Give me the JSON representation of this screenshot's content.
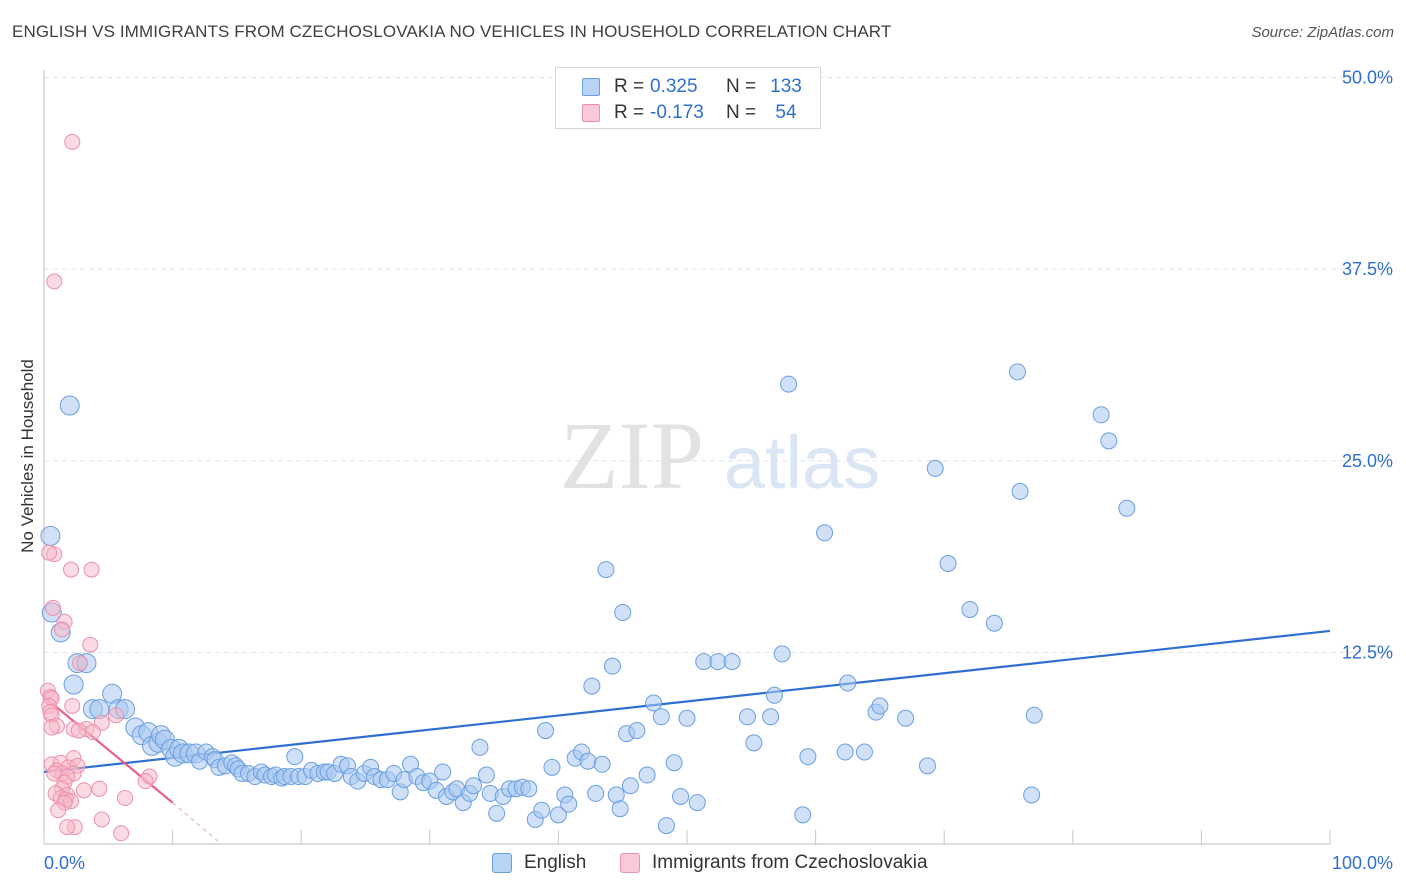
{
  "title": "ENGLISH VS IMMIGRANTS FROM CZECHOSLOVAKIA NO VEHICLES IN HOUSEHOLD CORRELATION CHART",
  "source": "Source: ZipAtlas.com",
  "watermark": {
    "zip": "ZIP",
    "atlas": "atlas"
  },
  "colors": {
    "english_fill": "#a9c8f0",
    "english_stroke": "#6a9fe0",
    "english_line": "#2f6fd1",
    "czech_fill": "#f6b8c9",
    "czech_stroke": "#ee8fab",
    "czech_line": "#e8608a",
    "value_text": "#2f6fd1",
    "grid": "#dfe3ea"
  },
  "legend": {
    "english": {
      "r_label": "R =",
      "r_value": "0.325",
      "n_label": "N =",
      "n_value": "133"
    },
    "czech": {
      "r_label": "R =",
      "r_value": "-0.173",
      "n_label": "N =",
      "n_value": "54"
    }
  },
  "bottom_legend": {
    "english": "English",
    "czech": "Immigrants from Czechoslovakia"
  },
  "chart_data": {
    "type": "scatter",
    "title": "ENGLISH VS IMMIGRANTS FROM CZECHOSLOVAKIA NO VEHICLES IN HOUSEHOLD CORRELATION CHART",
    "xlabel": "",
    "ylabel": "No Vehicles in Household",
    "xlim": [
      0,
      100
    ],
    "ylim": [
      0,
      52
    ],
    "x_tick_labels": [
      "0.0%",
      "100.0%"
    ],
    "y_ticks": [
      12.5,
      25.0,
      37.5,
      50.0
    ],
    "y_tick_labels": [
      "12.5%",
      "25.0%",
      "37.5%",
      "50.0%"
    ],
    "grid": true,
    "series": [
      {
        "name": "English",
        "points": [
          [
            0.5,
            20.1
          ],
          [
            0.6,
            15.1
          ],
          [
            1.3,
            13.8
          ],
          [
            2.0,
            28.6
          ],
          [
            2.3,
            10.4
          ],
          [
            2.6,
            11.8
          ],
          [
            3.3,
            11.8
          ],
          [
            3.8,
            8.8
          ],
          [
            4.3,
            8.8
          ],
          [
            5.3,
            9.8
          ],
          [
            5.8,
            8.8
          ],
          [
            6.3,
            8.8
          ],
          [
            7.1,
            7.6
          ],
          [
            7.6,
            7.1
          ],
          [
            8.1,
            7.3
          ],
          [
            8.4,
            6.4
          ],
          [
            8.9,
            6.6
          ],
          [
            9.1,
            7.1
          ],
          [
            9.4,
            6.8
          ],
          [
            9.9,
            6.2
          ],
          [
            10.2,
            5.7
          ],
          [
            10.5,
            6.2
          ],
          [
            10.8,
            5.9
          ],
          [
            11.3,
            5.9
          ],
          [
            11.8,
            5.9
          ],
          [
            12.1,
            5.4
          ],
          [
            12.6,
            6.0
          ],
          [
            13.1,
            5.7
          ],
          [
            13.3,
            5.5
          ],
          [
            13.6,
            5.0
          ],
          [
            14.1,
            5.1
          ],
          [
            14.6,
            5.3
          ],
          [
            14.9,
            5.1
          ],
          [
            15.1,
            4.9
          ],
          [
            15.4,
            4.6
          ],
          [
            15.9,
            4.6
          ],
          [
            16.4,
            4.4
          ],
          [
            16.9,
            4.7
          ],
          [
            17.2,
            4.5
          ],
          [
            17.7,
            4.4
          ],
          [
            18.0,
            4.5
          ],
          [
            18.5,
            4.3
          ],
          [
            18.7,
            4.4
          ],
          [
            19.2,
            4.4
          ],
          [
            19.5,
            5.7
          ],
          [
            19.8,
            4.4
          ],
          [
            20.3,
            4.4
          ],
          [
            20.8,
            4.8
          ],
          [
            21.3,
            4.6
          ],
          [
            21.8,
            4.7
          ],
          [
            22.1,
            4.7
          ],
          [
            22.6,
            4.6
          ],
          [
            23.1,
            5.2
          ],
          [
            23.6,
            5.1
          ],
          [
            23.9,
            4.4
          ],
          [
            24.4,
            4.1
          ],
          [
            24.9,
            4.6
          ],
          [
            25.4,
            5.0
          ],
          [
            25.7,
            4.4
          ],
          [
            26.2,
            4.2
          ],
          [
            26.7,
            4.2
          ],
          [
            27.2,
            4.6
          ],
          [
            27.7,
            3.4
          ],
          [
            28.0,
            4.2
          ],
          [
            28.5,
            5.2
          ],
          [
            29.0,
            4.4
          ],
          [
            29.5,
            4.0
          ],
          [
            30.0,
            4.1
          ],
          [
            30.5,
            3.5
          ],
          [
            31.0,
            4.7
          ],
          [
            31.3,
            3.1
          ],
          [
            31.8,
            3.4
          ],
          [
            32.1,
            3.6
          ],
          [
            32.6,
            2.7
          ],
          [
            33.1,
            3.3
          ],
          [
            33.4,
            3.8
          ],
          [
            33.9,
            6.3
          ],
          [
            34.4,
            4.5
          ],
          [
            34.7,
            3.3
          ],
          [
            35.2,
            2.0
          ],
          [
            35.7,
            3.1
          ],
          [
            36.2,
            3.6
          ],
          [
            36.7,
            3.6
          ],
          [
            37.2,
            3.7
          ],
          [
            37.7,
            3.6
          ],
          [
            38.2,
            1.6
          ],
          [
            38.7,
            2.2
          ],
          [
            39.0,
            7.4
          ],
          [
            39.5,
            5.0
          ],
          [
            40.0,
            1.9
          ],
          [
            40.5,
            3.2
          ],
          [
            40.8,
            2.6
          ],
          [
            41.3,
            5.6
          ],
          [
            41.8,
            6.0
          ],
          [
            42.3,
            5.4
          ],
          [
            42.6,
            10.3
          ],
          [
            42.9,
            3.3
          ],
          [
            43.4,
            5.2
          ],
          [
            43.7,
            17.9
          ],
          [
            44.2,
            11.6
          ],
          [
            44.5,
            3.2
          ],
          [
            44.8,
            2.3
          ],
          [
            45.0,
            15.1
          ],
          [
            45.3,
            7.2
          ],
          [
            45.6,
            3.8
          ],
          [
            46.1,
            7.4
          ],
          [
            46.9,
            4.5
          ],
          [
            47.4,
            9.2
          ],
          [
            48.0,
            8.3
          ],
          [
            48.4,
            1.2
          ],
          [
            49.0,
            5.3
          ],
          [
            49.5,
            3.1
          ],
          [
            50.0,
            8.2
          ],
          [
            50.8,
            2.7
          ],
          [
            51.3,
            11.9
          ],
          [
            52.4,
            11.9
          ],
          [
            53.5,
            11.9
          ],
          [
            54.7,
            8.3
          ],
          [
            55.2,
            6.6
          ],
          [
            56.5,
            8.3
          ],
          [
            56.8,
            9.7
          ],
          [
            57.4,
            12.4
          ],
          [
            57.9,
            30.0
          ],
          [
            59.0,
            1.9
          ],
          [
            59.4,
            5.7
          ],
          [
            60.7,
            20.3
          ],
          [
            62.3,
            6.0
          ],
          [
            62.5,
            10.5
          ],
          [
            63.8,
            6.0
          ],
          [
            64.7,
            8.6
          ],
          [
            65.0,
            9.0
          ],
          [
            67.0,
            8.2
          ],
          [
            68.7,
            5.1
          ],
          [
            69.3,
            24.5
          ],
          [
            70.3,
            18.3
          ],
          [
            72.0,
            15.3
          ],
          [
            73.9,
            14.4
          ],
          [
            75.7,
            30.8
          ],
          [
            75.9,
            23.0
          ],
          [
            76.8,
            3.2
          ],
          [
            77.0,
            8.4
          ],
          [
            82.2,
            28.0
          ],
          [
            82.8,
            26.3
          ],
          [
            84.2,
            21.9
          ]
        ],
        "trend": {
          "x": [
            0,
            100
          ],
          "y": [
            4.7,
            13.9
          ]
        }
      },
      {
        "name": "Immigrants from Czechoslovakia",
        "points": [
          [
            2.2,
            45.8
          ],
          [
            0.8,
            36.7
          ],
          [
            0.8,
            18.9
          ],
          [
            2.1,
            17.9
          ],
          [
            3.7,
            17.9
          ],
          [
            0.4,
            19.0
          ],
          [
            0.7,
            15.4
          ],
          [
            1.6,
            14.5
          ],
          [
            1.4,
            14.0
          ],
          [
            3.6,
            13.0
          ],
          [
            2.8,
            11.8
          ],
          [
            0.3,
            10.0
          ],
          [
            0.5,
            9.6
          ],
          [
            0.6,
            9.5
          ],
          [
            0.4,
            9.0
          ],
          [
            0.5,
            8.6
          ],
          [
            0.6,
            8.4
          ],
          [
            2.2,
            9.0
          ],
          [
            5.6,
            8.4
          ],
          [
            4.5,
            7.9
          ],
          [
            1.0,
            7.7
          ],
          [
            0.6,
            7.6
          ],
          [
            2.3,
            7.5
          ],
          [
            3.3,
            7.5
          ],
          [
            2.7,
            7.4
          ],
          [
            3.8,
            7.3
          ],
          [
            2.3,
            5.6
          ],
          [
            0.6,
            5.2
          ],
          [
            1.3,
            5.3
          ],
          [
            1.9,
            5.0
          ],
          [
            2.6,
            5.1
          ],
          [
            1.0,
            4.8
          ],
          [
            1.4,
            4.6
          ],
          [
            2.3,
            4.6
          ],
          [
            1.8,
            4.4
          ],
          [
            0.8,
            4.6
          ],
          [
            8.2,
            4.4
          ],
          [
            1.6,
            4.0
          ],
          [
            7.9,
            4.1
          ],
          [
            1.4,
            3.6
          ],
          [
            0.9,
            3.3
          ],
          [
            3.1,
            3.5
          ],
          [
            4.3,
            3.6
          ],
          [
            1.8,
            3.2
          ],
          [
            1.3,
            3.0
          ],
          [
            1.7,
            2.9
          ],
          [
            6.3,
            3.0
          ],
          [
            2.1,
            2.8
          ],
          [
            1.6,
            2.7
          ],
          [
            1.1,
            2.2
          ],
          [
            4.5,
            1.6
          ],
          [
            2.4,
            1.1
          ],
          [
            1.8,
            1.1
          ],
          [
            6.0,
            0.7
          ]
        ],
        "trend": {
          "x": [
            0,
            10
          ],
          "y": [
            9.6,
            2.7
          ]
        },
        "trend_extension": {
          "x": [
            10,
            13.5
          ],
          "y": [
            2.7,
            0.2
          ]
        }
      }
    ]
  }
}
